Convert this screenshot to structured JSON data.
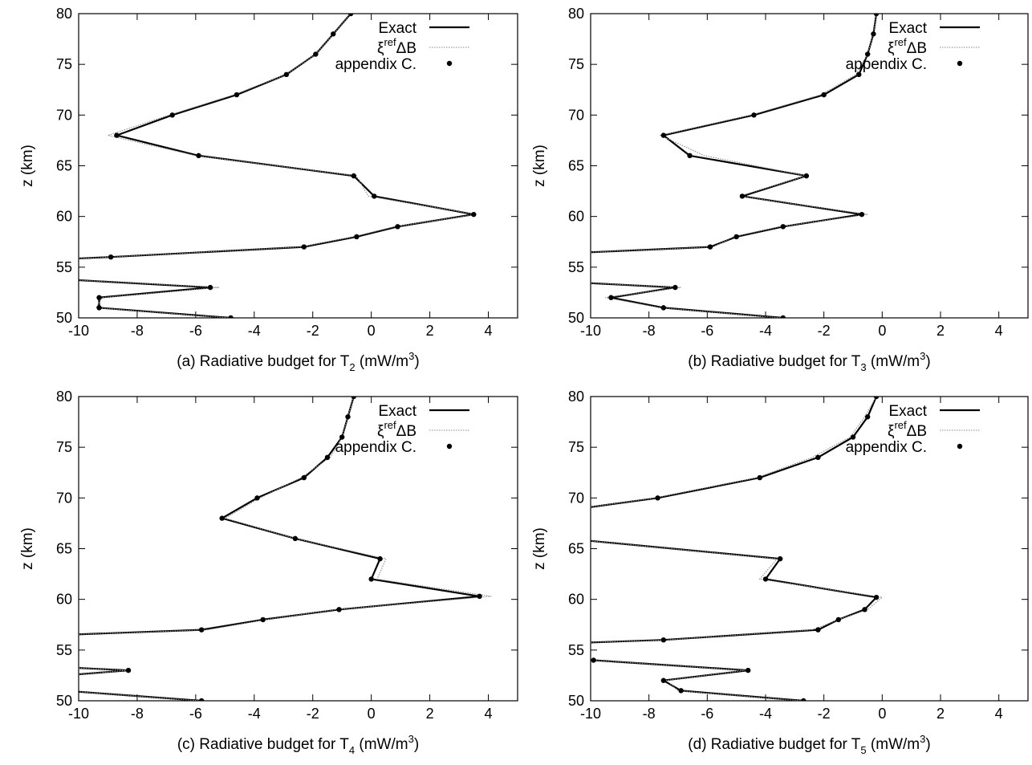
{
  "chart_data": [
    {
      "type": "line",
      "panel": "a",
      "caption": {
        "prefix": "(a) Radiative budget for T",
        "sub": "2",
        "unit_open": " (mW/m",
        "unit_sup": "3",
        "unit_close": ")"
      },
      "ylabel": "z (km)",
      "xlim": [
        -10,
        5
      ],
      "ylim": [
        50,
        80
      ],
      "xticks": [
        -10,
        -8,
        -6,
        -4,
        -2,
        0,
        2,
        4
      ],
      "yticks": [
        50,
        55,
        60,
        65,
        70,
        75,
        80
      ],
      "grid": false,
      "legend_position": "top-right",
      "legend": {
        "exact": "Exact",
        "xi_base": "ξ",
        "xi_sup": "ref",
        "xi_tail": "ΔB",
        "appendix": "appendix C."
      },
      "series": [
        {
          "name": "Exact",
          "style": "solid",
          "x": [
            -4.8,
            -9.3,
            -9.3,
            -5.5,
            -10.5,
            null,
            -10.5,
            -8.9,
            -2.3,
            -0.5,
            0.9,
            3.5,
            0.1,
            -0.6,
            -5.9,
            -8.7,
            -6.8,
            -4.6,
            -2.9,
            -1.9,
            -1.3,
            -0.7
          ],
          "y": [
            50,
            51,
            52,
            53,
            53.8,
            null,
            55.8,
            56,
            57,
            58,
            59,
            60.2,
            62,
            64,
            66,
            68,
            70,
            72,
            74,
            76,
            78,
            80
          ]
        },
        {
          "name": "ξrefΔB",
          "style": "dotted",
          "x": [
            -4.9,
            -9.4,
            -9.2,
            -5.2,
            -10.5,
            null,
            -10.5,
            -8.9,
            -2.4,
            -0.6,
            0.8,
            3.6,
            -0.1,
            -0.5,
            -6.0,
            -9.0,
            -6.9,
            -4.7,
            -2.9,
            -1.9,
            -1.3,
            -0.7
          ],
          "y": [
            50,
            51,
            52,
            53,
            53.8,
            null,
            55.8,
            56,
            57,
            58,
            59,
            60.2,
            62,
            64,
            66,
            68,
            70,
            72,
            74,
            76,
            78,
            80
          ]
        },
        {
          "name": "appendix C.",
          "style": "points",
          "x": [
            -4.8,
            -9.3,
            -9.3,
            -5.5,
            -8.9,
            -2.3,
            -0.5,
            0.9,
            3.5,
            0.1,
            -0.6,
            -5.9,
            -8.7,
            -6.8,
            -4.6,
            -2.9,
            -1.9,
            -1.3,
            -0.7
          ],
          "y": [
            50,
            51,
            52,
            53,
            56,
            57,
            58,
            59,
            60.2,
            62,
            64,
            66,
            68,
            70,
            72,
            74,
            76,
            78,
            80
          ]
        }
      ]
    },
    {
      "type": "line",
      "panel": "b",
      "caption": {
        "prefix": "(b) Radiative budget for T",
        "sub": "3",
        "unit_open": " (mW/m",
        "unit_sup": "3",
        "unit_close": ")"
      },
      "ylabel": "z (km)",
      "xlim": [
        -10,
        5
      ],
      "ylim": [
        50,
        80
      ],
      "xticks": [
        -10,
        -8,
        -6,
        -4,
        -2,
        0,
        2,
        4
      ],
      "yticks": [
        50,
        55,
        60,
        65,
        70,
        75,
        80
      ],
      "grid": false,
      "legend_position": "top-right",
      "legend": {
        "exact": "Exact",
        "xi_base": "ξ",
        "xi_sup": "ref",
        "xi_tail": "ΔB",
        "appendix": "appendix C."
      },
      "series": [
        {
          "name": "Exact",
          "style": "solid",
          "x": [
            -3.4,
            -7.5,
            -9.3,
            -7.1,
            -10.5,
            null,
            -10.5,
            -5.9,
            -5.0,
            -3.4,
            -0.7,
            -4.8,
            -2.6,
            -6.6,
            -7.5,
            -4.4,
            -2.0,
            -0.8,
            -0.5,
            -0.3,
            -0.2
          ],
          "y": [
            50,
            51,
            52,
            53,
            53.5,
            null,
            56.4,
            57,
            58,
            59,
            60.2,
            62,
            64,
            66,
            68,
            70,
            72,
            74,
            76,
            78,
            80
          ]
        },
        {
          "name": "ξrefΔB",
          "style": "dotted",
          "x": [
            -3.5,
            -7.6,
            -9.5,
            -6.9,
            -10.5,
            null,
            -10.5,
            -5.8,
            -5.1,
            -3.5,
            -0.5,
            -4.9,
            -2.6,
            -6.1,
            -7.6,
            -4.5,
            -2.1,
            -0.9,
            -0.5,
            -0.3,
            -0.2
          ],
          "y": [
            50,
            51,
            52,
            53,
            53.5,
            null,
            56.4,
            57,
            58,
            59,
            60.2,
            62,
            64,
            66,
            68,
            70,
            72,
            74,
            76,
            78,
            80
          ]
        },
        {
          "name": "appendix C.",
          "style": "points",
          "x": [
            -3.4,
            -7.5,
            -9.3,
            -7.1,
            -5.9,
            -5.0,
            -3.4,
            -0.7,
            -4.8,
            -2.6,
            -6.6,
            -7.5,
            -4.4,
            -2.0,
            -0.8,
            -0.5,
            -0.3,
            -0.2
          ],
          "y": [
            50,
            51,
            52,
            53,
            57,
            58,
            59,
            60.2,
            62,
            64,
            66,
            68,
            70,
            72,
            74,
            76,
            78,
            80
          ]
        }
      ]
    },
    {
      "type": "line",
      "panel": "c",
      "caption": {
        "prefix": "(c) Radiative budget for T",
        "sub": "4",
        "unit_open": " (mW/m",
        "unit_sup": "3",
        "unit_close": ")"
      },
      "ylabel": "z (km)",
      "xlim": [
        -10,
        5
      ],
      "ylim": [
        50,
        80
      ],
      "xticks": [
        -10,
        -8,
        -6,
        -4,
        -2,
        0,
        2,
        4
      ],
      "yticks": [
        50,
        55,
        60,
        65,
        70,
        75,
        80
      ],
      "grid": false,
      "legend_position": "top-right",
      "legend": {
        "exact": "Exact",
        "xi_base": "ξ",
        "xi_sup": "ref",
        "xi_tail": "ΔB",
        "appendix": "appendix C."
      },
      "series": [
        {
          "name": "Exact",
          "style": "solid",
          "x": [
            -5.8,
            -10.5,
            null,
            -10.5,
            -8.3,
            -10.5,
            null,
            -10.5,
            -5.8,
            -3.7,
            -1.1,
            3.7,
            0.0,
            0.3,
            -2.6,
            -5.1,
            -3.9,
            -2.3,
            -1.5,
            -1.0,
            -0.8,
            -0.6
          ],
          "y": [
            50,
            51,
            null,
            52.5,
            53,
            53.3,
            null,
            56.5,
            57,
            58,
            59,
            60.3,
            62,
            64,
            66,
            68,
            70,
            72,
            74,
            76,
            78,
            80
          ]
        },
        {
          "name": "ξrefΔB",
          "style": "dotted",
          "x": [
            -5.9,
            -10.5,
            null,
            -10.5,
            -8.3,
            -10.5,
            null,
            -10.5,
            -5.6,
            -3.6,
            -1.2,
            4.1,
            0.2,
            0.5,
            -2.6,
            -5.0,
            -3.8,
            -2.4,
            -1.4,
            -1.0,
            -0.8,
            -0.6
          ],
          "y": [
            50,
            51,
            null,
            52.5,
            53,
            53.3,
            null,
            56.5,
            57,
            58,
            59,
            60.3,
            62,
            64,
            66,
            68,
            70,
            72,
            74,
            76,
            78,
            80
          ]
        },
        {
          "name": "appendix C.",
          "style": "points",
          "x": [
            -5.8,
            -8.3,
            -5.8,
            -3.7,
            -1.1,
            3.7,
            0.0,
            0.3,
            -2.6,
            -5.1,
            -3.9,
            -2.3,
            -1.5,
            -1.0,
            -0.8,
            -0.6
          ],
          "y": [
            50,
            53,
            57,
            58,
            59,
            60.3,
            62,
            64,
            66,
            68,
            70,
            72,
            74,
            76,
            78,
            80
          ]
        }
      ]
    },
    {
      "type": "line",
      "panel": "d",
      "caption": {
        "prefix": "(d) Radiative budget for T",
        "sub": "5",
        "unit_open": " (mW/m",
        "unit_sup": "3",
        "unit_close": ")"
      },
      "ylabel": "z (km)",
      "xlim": [
        -10,
        5
      ],
      "ylim": [
        50,
        80
      ],
      "xticks": [
        -10,
        -8,
        -6,
        -4,
        -2,
        0,
        2,
        4
      ],
      "yticks": [
        50,
        55,
        60,
        65,
        70,
        75,
        80
      ],
      "grid": false,
      "legend_position": "top-right",
      "legend": {
        "exact": "Exact",
        "xi_base": "ξ",
        "xi_sup": "ref",
        "xi_tail": "ΔB",
        "appendix": "appendix C."
      },
      "series": [
        {
          "name": "Exact",
          "style": "solid",
          "x": [
            -2.7,
            -6.9,
            -7.5,
            -4.6,
            -9.9,
            -10.5,
            null,
            -10.5,
            -7.5,
            -2.2,
            -1.5,
            -0.6,
            -0.2,
            -4.0,
            -3.5,
            -10.5,
            null,
            -10.5,
            -7.7,
            -4.2,
            -2.2,
            -1.0,
            -0.5,
            -0.2
          ],
          "y": [
            50,
            51,
            52,
            53,
            54,
            54.1,
            null,
            55.7,
            56,
            57,
            58,
            59,
            60.2,
            62,
            64,
            65.9,
            null,
            68.9,
            70,
            72,
            74,
            76,
            78,
            80
          ]
        },
        {
          "name": "ξrefΔB",
          "style": "dotted",
          "x": [
            -2.8,
            -7.0,
            -7.4,
            -4.7,
            -9.9,
            -10.5,
            null,
            -10.5,
            -7.4,
            -2.4,
            -1.5,
            -0.5,
            0.0,
            -4.2,
            -3.6,
            -10.5,
            null,
            -10.5,
            -7.8,
            -4.3,
            -2.4,
            -1.1,
            -0.6,
            -0.2
          ],
          "y": [
            50,
            51,
            52,
            53,
            54,
            54.1,
            null,
            55.7,
            56,
            57,
            58,
            59,
            60.2,
            62,
            64,
            65.9,
            null,
            68.9,
            70,
            72,
            74,
            76,
            78,
            80
          ]
        },
        {
          "name": "appendix C.",
          "style": "points",
          "x": [
            -2.7,
            -6.9,
            -7.5,
            -4.6,
            -9.9,
            -7.5,
            -2.2,
            -1.5,
            -0.6,
            -0.2,
            -4.0,
            -3.5,
            -7.7,
            -4.2,
            -2.2,
            -1.0,
            -0.5,
            -0.2
          ],
          "y": [
            50,
            51,
            52,
            53,
            54,
            56,
            57,
            58,
            59,
            60.2,
            62,
            64,
            70,
            72,
            74,
            76,
            78,
            80
          ]
        }
      ]
    }
  ]
}
